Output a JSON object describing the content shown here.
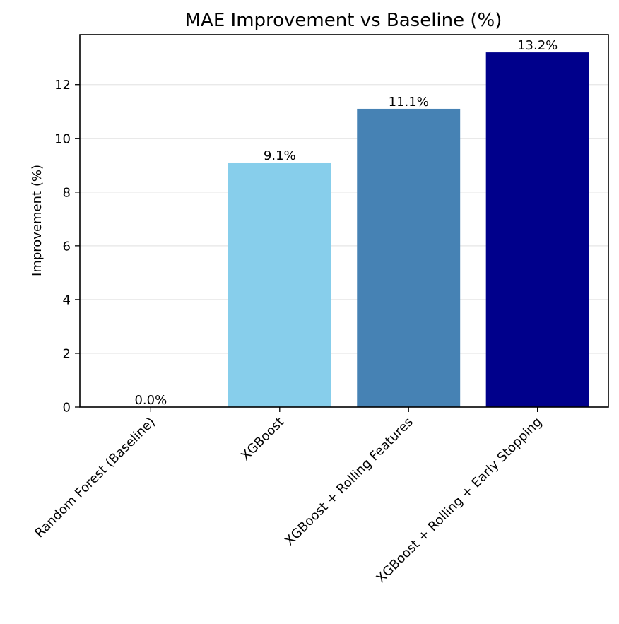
{
  "chart_data": {
    "type": "bar",
    "title": "MAE Improvement vs Baseline (%)",
    "xlabel": "",
    "ylabel": "Improvement (%)",
    "categories": [
      "Random Forest (Baseline)",
      "XGBoost",
      "XGBoost + Rolling Features",
      "XGBoost + Rolling + Early Stopping"
    ],
    "values": [
      0.0,
      9.1,
      11.1,
      13.2
    ],
    "data_labels": [
      "0.0%",
      "9.1%",
      "11.1%",
      "13.2%"
    ],
    "colors": [
      "#a9a9a9",
      "#87ceeb",
      "#4682b4",
      "#00008b"
    ],
    "ylim": [
      0,
      13.86
    ],
    "yticks": [
      0,
      2,
      4,
      6,
      8,
      10,
      12
    ],
    "grid": "y-axis only",
    "legend": "none"
  }
}
